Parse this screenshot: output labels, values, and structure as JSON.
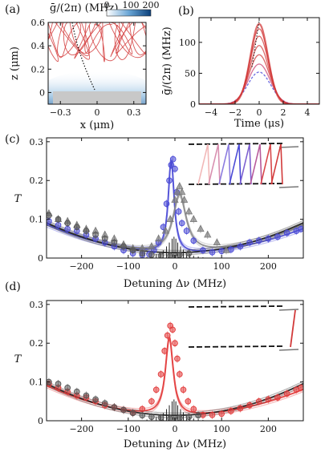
{
  "chart_data": [
    {
      "panel": "(a)",
      "type": "heatmap",
      "xlabel": "x (μm)",
      "ylabel": "z (μm)",
      "colorbar_label": "ḡ/(2π) (MHz)",
      "colorbar_ticks": [
        "0",
        "100",
        "200"
      ],
      "colorbar_range": [
        0,
        200
      ],
      "x_ticks": [
        "-0.3",
        "0",
        "0.3"
      ],
      "y_ticks": [
        "0",
        "0.2",
        "0.4",
        "0.6"
      ],
      "xlim": [
        -0.4,
        0.4
      ],
      "ylim": [
        -0.1,
        0.6
      ],
      "colors": {
        "trajectory": "#d23a3a",
        "field": "#1f5f9a",
        "substrate": "#c8c8c8"
      }
    },
    {
      "panel": "(b)",
      "type": "line",
      "xlabel": "Time (μs)",
      "ylabel": "ḡ/(2π) (MHz)",
      "x_ticks": [
        "-4",
        "-2",
        "0",
        "2",
        "4"
      ],
      "y_ticks": [
        "0",
        "50",
        "100"
      ],
      "xlim": [
        -5,
        5
      ],
      "ylim": [
        0,
        140
      ],
      "curves": [
        {
          "color": "#3b3bd6",
          "peak": 52,
          "width": 0.95,
          "dash": true
        },
        {
          "color": "#c94070",
          "peak": 65,
          "width": 0.9,
          "dash": false
        },
        {
          "color": "#d23a3a",
          "peak": 80,
          "width": 0.85,
          "dash": false
        },
        {
          "color": "#d23a3a",
          "peak": 95,
          "width": 0.8,
          "dash": false
        },
        {
          "color": "#d23a3a",
          "peak": 110,
          "width": 0.78,
          "dash": false
        },
        {
          "color": "#d23a3a",
          "peak": 122,
          "width": 0.75,
          "dash": false
        },
        {
          "color": "#d23a3a",
          "peak": 130,
          "width": 0.72,
          "dash": false
        }
      ],
      "peak_marker": {
        "x": 0,
        "y": 135
      }
    },
    {
      "panel": "(c)",
      "type": "scatter",
      "xlabel": "Detuning Δν (MHz)",
      "ylabel": "T",
      "x_ticks": [
        "-200",
        "-100",
        "0",
        "100",
        "200"
      ],
      "y_ticks": [
        "0",
        "0.1",
        "0.2",
        "0.3"
      ],
      "xlim": [
        -275,
        275
      ],
      "ylim": [
        0,
        0.31
      ],
      "series": [
        {
          "color": "#4a4ad6",
          "marker": "circle",
          "x": [
            -270,
            -250,
            -230,
            -210,
            -190,
            -170,
            -150,
            -130,
            -110,
            -90,
            -70,
            -55,
            -45,
            -35,
            -25,
            -18,
            -12,
            -8,
            -4,
            0,
            4,
            8,
            15,
            25,
            40,
            60,
            80,
            100,
            120,
            140,
            160,
            180,
            200,
            220,
            240,
            260,
            270
          ],
          "y": [
            0.095,
            0.085,
            0.075,
            0.07,
            0.06,
            0.05,
            0.04,
            0.03,
            0.02,
            0.012,
            0.008,
            0.01,
            0.02,
            0.04,
            0.08,
            0.14,
            0.2,
            0.24,
            0.255,
            0.23,
            0.17,
            0.12,
            0.09,
            0.07,
            0.045,
            0.02,
            0.015,
            0.018,
            0.022,
            0.03,
            0.04,
            0.045,
            0.05,
            0.055,
            0.065,
            0.07,
            0.075
          ]
        },
        {
          "color": "#7a7a7a",
          "marker": "triangle",
          "x": [
            -270,
            -250,
            -230,
            -210,
            -190,
            -170,
            -150,
            -130,
            -110,
            -90,
            -70,
            -50,
            -35,
            -20,
            -10,
            0,
            5,
            10,
            15,
            20,
            30,
            40,
            55,
            70,
            90,
            110
          ],
          "y": [
            0.115,
            0.1,
            0.095,
            0.085,
            0.075,
            0.07,
            0.06,
            0.05,
            0.035,
            0.025,
            0.025,
            0.03,
            0.05,
            0.07,
            0.1,
            0.15,
            0.17,
            0.185,
            0.17,
            0.15,
            0.12,
            0.1,
            0.075,
            0.06,
            0.04,
            0.02
          ]
        },
        {
          "color": "#555555",
          "marker": "circle",
          "x": [
            -270,
            -250,
            -230,
            -210,
            -190,
            -170,
            -150,
            -130,
            -110,
            -90,
            -70,
            -50,
            -30,
            -10,
            10,
            30
          ],
          "y": [
            0.11,
            0.1,
            0.09,
            0.08,
            0.07,
            0.06,
            0.05,
            0.04,
            0.03,
            0.02,
            0.012,
            0.008,
            0.006,
            0.006,
            0.008,
            0.012
          ]
        }
      ],
      "fits": [
        {
          "color": "#4a4ad6",
          "center": -8,
          "width": 15,
          "amp": 0.24,
          "bg_left": 0.085,
          "bg_right": 0.075
        },
        {
          "color": "#8a8a8a",
          "center": 10,
          "width": 35,
          "amp": 0.15,
          "bg_left": 0.09,
          "bg_right": 0.085
        },
        {
          "color": "#222222",
          "center": 0,
          "width": 200,
          "amp": 0,
          "bg_left": 0.09,
          "bg_right": 0.09
        }
      ],
      "stick_spectrum": {
        "color": "#222222",
        "x": [
          -60,
          -50,
          -40,
          -32,
          -25,
          -18,
          -12,
          -6,
          -2,
          2,
          6,
          12,
          18,
          25,
          32,
          40,
          50,
          60
        ],
        "h": [
          0.003,
          0.006,
          0.01,
          0.015,
          0.02,
          0.03,
          0.04,
          0.05,
          0.055,
          0.05,
          0.04,
          0.03,
          0.022,
          0.015,
          0.01,
          0.006,
          0.004,
          0.002
        ]
      },
      "level_diagram": {
        "colors": [
          "#f2b8b8",
          "#d88fb0",
          "#8b7ce0",
          "#4a4ad6",
          "#7d60d0",
          "#b85a9a",
          "#d8474a",
          "#d23a3a"
        ]
      }
    },
    {
      "panel": "(d)",
      "type": "scatter",
      "xlabel": "Detuning Δν (MHz)",
      "ylabel": "T",
      "x_ticks": [
        "-200",
        "-100",
        "0",
        "100",
        "200"
      ],
      "y_ticks": [
        "0",
        "0.1",
        "0.2",
        "0.3"
      ],
      "xlim": [
        -275,
        275
      ],
      "ylim": [
        0,
        0.31
      ],
      "series": [
        {
          "color": "#e23a3a",
          "marker": "circle",
          "x": [
            -270,
            -250,
            -230,
            -210,
            -190,
            -170,
            -150,
            -130,
            -110,
            -90,
            -70,
            -50,
            -40,
            -30,
            -22,
            -16,
            -10,
            -5,
            0,
            5,
            10,
            18,
            28,
            40,
            60,
            80,
            100,
            120,
            140,
            160,
            180,
            200,
            220,
            240,
            260,
            270
          ],
          "y": [
            0.095,
            0.085,
            0.075,
            0.065,
            0.06,
            0.05,
            0.04,
            0.035,
            0.028,
            0.02,
            0.03,
            0.05,
            0.08,
            0.12,
            0.18,
            0.22,
            0.245,
            0.235,
            0.2,
            0.16,
            0.12,
            0.08,
            0.05,
            0.03,
            0.015,
            0.015,
            0.018,
            0.025,
            0.032,
            0.04,
            0.05,
            0.055,
            0.06,
            0.07,
            0.08,
            0.085
          ]
        },
        {
          "color": "#555555",
          "marker": "circle",
          "x": [
            -270,
            -250,
            -230,
            -210,
            -190,
            -170,
            -150,
            -130,
            -110,
            -90,
            -70,
            -50,
            -30,
            -10,
            10,
            30,
            50
          ],
          "y": [
            0.1,
            0.095,
            0.085,
            0.075,
            0.065,
            0.055,
            0.045,
            0.035,
            0.028,
            0.02,
            0.014,
            0.01,
            0.008,
            0.006,
            0.007,
            0.01,
            0.014
          ]
        }
      ],
      "fits": [
        {
          "color": "#e23a3a",
          "center": -12,
          "width": 20,
          "amp": 0.2,
          "bg_left": 0.09,
          "bg_right": 0.08
        },
        {
          "color": "#222222",
          "center": 0,
          "width": 200,
          "amp": 0,
          "bg_left": 0.095,
          "bg_right": 0.095
        }
      ],
      "stick_spectrum": {
        "color": "#222222",
        "x": [
          -60,
          -50,
          -40,
          -32,
          -25,
          -18,
          -12,
          -6,
          -2,
          2,
          6,
          12,
          18,
          25,
          32,
          40,
          50,
          60
        ],
        "h": [
          0.003,
          0.006,
          0.01,
          0.015,
          0.02,
          0.03,
          0.04,
          0.05,
          0.055,
          0.05,
          0.04,
          0.03,
          0.022,
          0.015,
          0.01,
          0.006,
          0.004,
          0.002
        ]
      },
      "level_diagram": {
        "colors": [
          "#d23a3a"
        ]
      }
    }
  ]
}
